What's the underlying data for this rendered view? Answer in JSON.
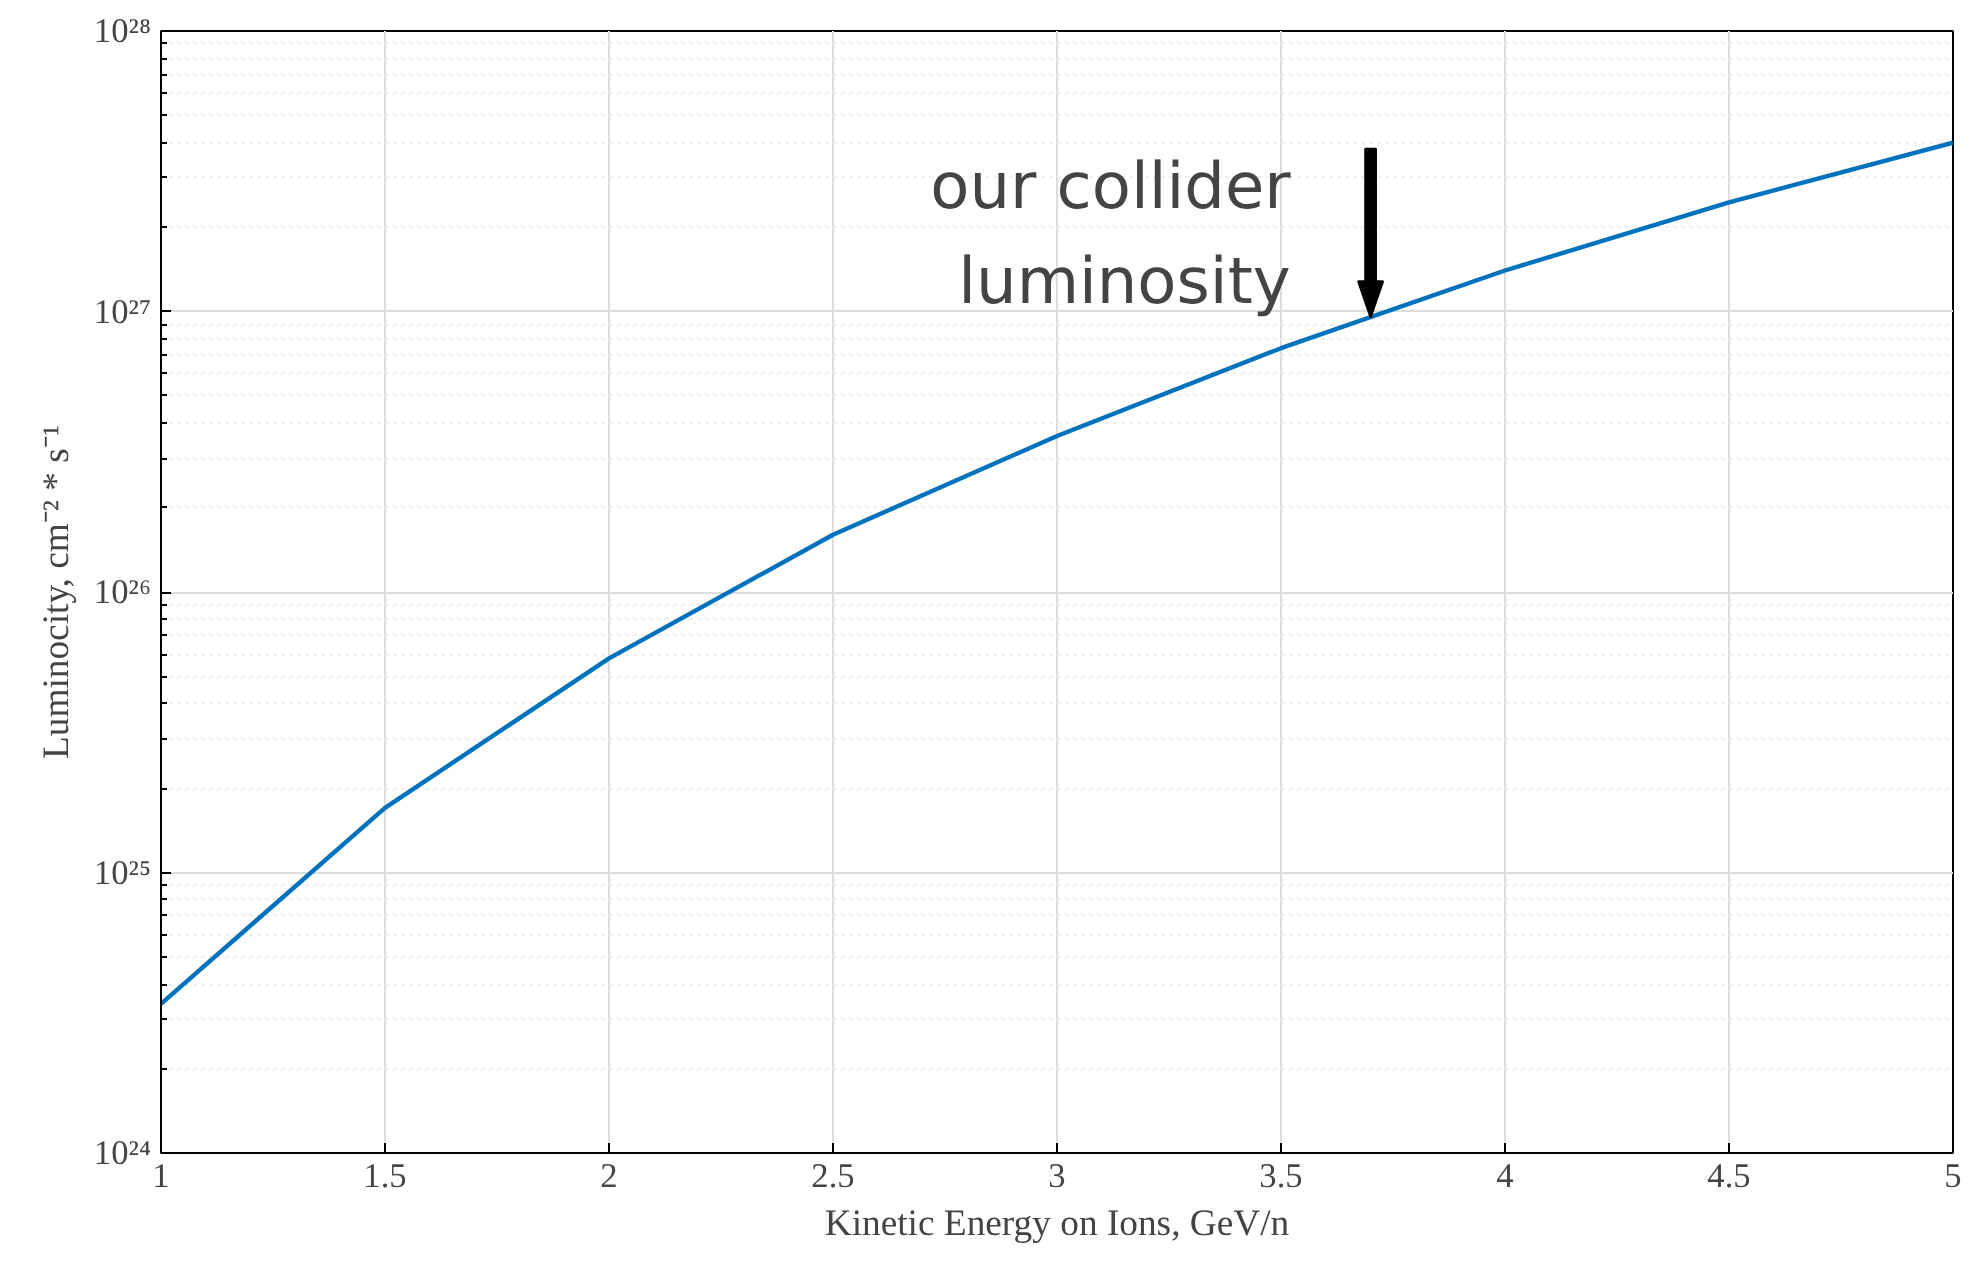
{
  "chart_data": {
    "type": "line",
    "xlabel": "Kinetic Energy on Ions, GeV/n",
    "ylabel": "Luminocity, cm⁻² * s⁻¹",
    "x": [
      1,
      1.5,
      2,
      2.5,
      3,
      3.5,
      4,
      4.5,
      5
    ],
    "series": [
      {
        "color": "#0072bd",
        "values": [
          3.4e+24,
          1.7e+25,
          5.8e+25,
          1.6e+26,
          3.6e+26,
          7.4e+26,
          1.4e+27,
          2.45e+27,
          4e+27
        ]
      }
    ],
    "log": "y",
    "xlim": [
      1,
      5
    ],
    "ylim": [
      1e+24,
      1e+28
    ],
    "xticks": [
      1,
      1.5,
      2,
      2.5,
      3,
      3.5,
      4,
      4.5,
      5
    ],
    "yticks": [
      {
        "value": 1e+24,
        "label": "10²⁴"
      },
      {
        "value": 1e+25,
        "label": "10²⁵"
      },
      {
        "value": 1e+26,
        "label": "10²⁶"
      },
      {
        "value": 1e+27,
        "label": "10²⁷"
      },
      {
        "value": 1e+28,
        "label": "10²⁸"
      }
    ],
    "grid": true,
    "marker": "none",
    "line_style": "solid",
    "annotations": [
      {
        "text": "our collider\nluminosity",
        "x": 3.7,
        "y": 9.5e+26
      }
    ]
  }
}
